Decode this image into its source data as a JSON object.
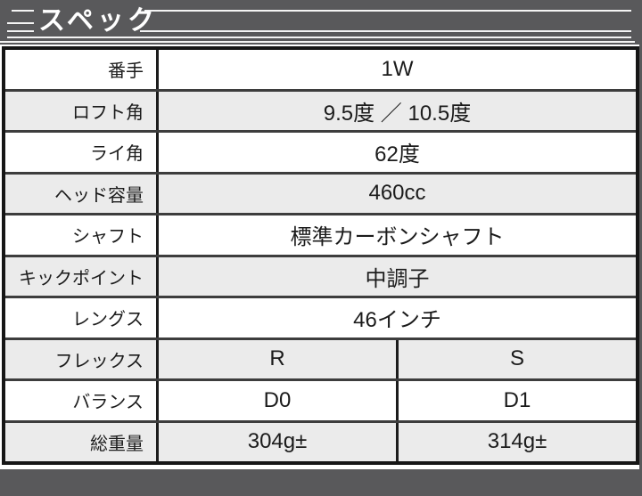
{
  "header": {
    "title": "スペック"
  },
  "spec_table": {
    "rows": [
      {
        "label": "番手",
        "values": [
          "1W"
        ]
      },
      {
        "label": "ロフト角",
        "values": [
          "9.5度 ／ 10.5度"
        ]
      },
      {
        "label": "ライ角",
        "values": [
          "62度"
        ]
      },
      {
        "label": "ヘッド容量",
        "values": [
          "460cc"
        ]
      },
      {
        "label": "シャフト",
        "values": [
          "標準カーボンシャフト"
        ]
      },
      {
        "label": "キックポイント",
        "values": [
          "中調子"
        ]
      },
      {
        "label": "レングス",
        "values": [
          "46インチ"
        ]
      },
      {
        "label": "フレックス",
        "values": [
          "R",
          "S"
        ]
      },
      {
        "label": "バランス",
        "values": [
          "D0",
          "D1"
        ]
      },
      {
        "label": "総重量",
        "values": [
          "304g±",
          "314g±"
        ]
      }
    ]
  },
  "colors": {
    "header_bg": "#59595b",
    "row_alt_bg": "#ebebeb",
    "outer_border": "#161616",
    "row_separator": "#3d3d3d",
    "text": "#1b1b1b",
    "title_text": "#ffffff"
  }
}
